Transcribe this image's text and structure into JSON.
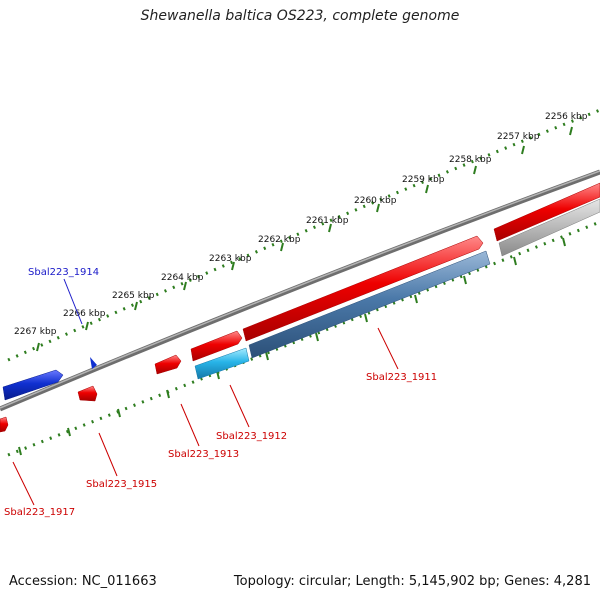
{
  "title": "Shewanella baltica OS223, complete genome",
  "footer": {
    "accession": "Accession: NC_011663",
    "summary": "Topology: circular; Length: 5,145,902 bp; Genes: 4,281"
  },
  "colors": {
    "backbone": "#8a8a8a",
    "ticks": "#2e7d1f",
    "forward_gene": "#e60000",
    "reverse_gene": "#1030d0",
    "highlight_gene": "#28b4e8",
    "steel_gene": "#4a78a8",
    "gray_gene": "#b8b8b8",
    "reverse_label": "#1a1ac8",
    "forward_label": "#cc0000"
  },
  "kbp_labels": [
    "2256 kbp",
    "2257 kbp",
    "2258 kbp",
    "2259 kbp",
    "2260 kbp",
    "2261 kbp",
    "2262 kbp",
    "2263 kbp",
    "2264 kbp",
    "2265 kbp",
    "2266 kbp",
    "2267 kbp"
  ],
  "gene_labels": {
    "sbal_1914": "Sbal223_1914",
    "sbal_1911": "Sbal223_1911",
    "sbal_1912": "Sbal223_1912",
    "sbal_1913": "Sbal223_1913",
    "sbal_1915": "Sbal223_1915",
    "sbal_1917": "Sbal223_1917"
  }
}
